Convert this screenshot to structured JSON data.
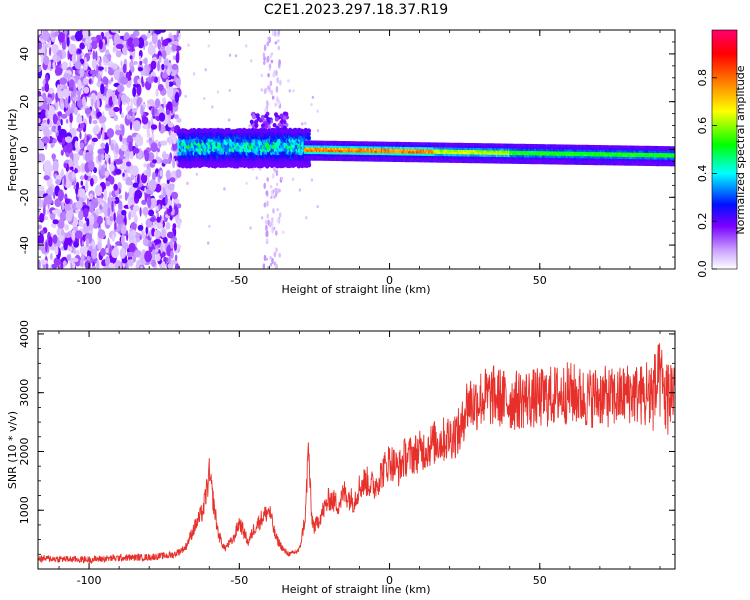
{
  "figure": {
    "title": "C2E1.2023.297.18.37.R19"
  },
  "colors": {
    "axis": "#000000",
    "snr_line": "#e8302b",
    "background": "#ffffff"
  },
  "chart_data": [
    {
      "type": "heatmap",
      "name": "spectrogram",
      "xlabel": "Height of straight line (km)",
      "ylabel": "Frequency (Hz)",
      "xlim": [
        -117,
        95
      ],
      "ylim": [
        -50,
        50
      ],
      "xticks": [
        -100,
        -50,
        0,
        50
      ],
      "yticks": [
        -40,
        -20,
        0,
        20,
        40
      ],
      "grid": false,
      "colorbar": {
        "label": "Normalized spectral amplitude",
        "range": [
          0.0,
          1.0
        ],
        "ticks": [
          0.0,
          0.2,
          0.4,
          0.6,
          0.8
        ],
        "tick_labels": [
          "0.0",
          "0.2",
          "0.4",
          "0.6",
          "0.8"
        ],
        "colormap": [
          "#ffffff",
          "#c9a0ff",
          "#7a00ff",
          "#0010ff",
          "#00ffff",
          "#00ff00",
          "#ffff00",
          "#ff8000",
          "#ff0000",
          "#ff0070"
        ]
      },
      "regions": [
        {
          "x_range": [
            -117,
            -70
          ],
          "freq_range": [
            -50,
            50
          ],
          "amplitude": 0.12,
          "pattern": "scattered noise"
        },
        {
          "x_range": [
            -70,
            -30
          ],
          "freq_range": [
            -6,
            7
          ],
          "amplitude": 0.35,
          "pattern": "broad band"
        },
        {
          "x_range": [
            -45,
            -35
          ],
          "freq_range": [
            8,
            14
          ],
          "amplitude": 0.15,
          "pattern": "patch"
        },
        {
          "x_range": [
            -42,
            -36
          ],
          "freq_range": [
            -50,
            50
          ],
          "amplitude": 0.05,
          "pattern": "faint column"
        },
        {
          "x_range": [
            -28,
            95
          ],
          "freq_range": [
            -3,
            3
          ],
          "amplitude": 0.6,
          "pattern": "narrow band, peak near 0 Hz"
        }
      ]
    },
    {
      "type": "line",
      "name": "snr",
      "xlabel": "Height of straight line (km)",
      "ylabel": "SNR (10 * v/v)",
      "xlim": [
        -117,
        95
      ],
      "ylim": [
        0,
        4050
      ],
      "xticks": [
        -100,
        -50,
        0,
        50
      ],
      "yticks": [
        1000,
        2000,
        3000,
        4000
      ],
      "grid": false,
      "series": [
        {
          "x": [
            -117,
            -110,
            -100,
            -90,
            -80,
            -72,
            -68,
            -65,
            -62,
            -60,
            -57,
            -55,
            -52,
            -50,
            -47,
            -45,
            -42,
            -40,
            -38,
            -35,
            -33,
            -30,
            -28,
            -27,
            -26,
            -25,
            -22,
            -20,
            -17,
            -15,
            -12,
            -10,
            -8,
            -5,
            -3,
            0,
            3,
            5,
            8,
            10,
            12,
            15,
            18,
            20,
            22,
            24,
            25,
            27,
            28,
            30,
            35,
            40,
            45,
            50,
            55,
            60,
            65,
            70,
            75,
            80,
            85,
            88,
            90,
            92,
            95
          ],
          "values": [
            180,
            170,
            160,
            190,
            200,
            240,
            360,
            700,
            1000,
            1600,
            600,
            350,
            500,
            800,
            450,
            700,
            900,
            1000,
            550,
            300,
            250,
            320,
            900,
            2100,
            900,
            700,
            1000,
            1200,
            1100,
            1300,
            1150,
            1400,
            1500,
            1400,
            1600,
            1850,
            1700,
            1900,
            1950,
            2000,
            2050,
            2150,
            2200,
            2250,
            2300,
            2350,
            2750,
            2850,
            2800,
            2900,
            2950,
            2850,
            2900,
            2900,
            2950,
            3000,
            2900,
            2950,
            2900,
            3000,
            2950,
            3000,
            3200,
            2900,
            3100
          ]
        }
      ]
    }
  ]
}
